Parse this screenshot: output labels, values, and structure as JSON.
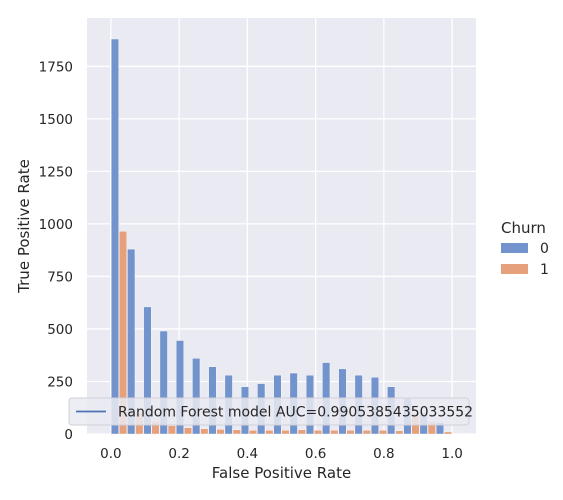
{
  "chart_data": {
    "type": "bar",
    "xlabel": "False Positive Rate",
    "ylabel": "True Positive Rate",
    "xlim": [
      -0.07,
      1.07
    ],
    "ylim": [
      0,
      1980
    ],
    "x_ticks": [
      0.0,
      0.2,
      0.4,
      0.6,
      0.8,
      1.0
    ],
    "x_tick_labels": [
      "0.0",
      "0.2",
      "0.4",
      "0.6",
      "0.8",
      "1.0"
    ],
    "y_ticks": [
      0,
      250,
      500,
      750,
      1000,
      1250,
      1500,
      1750
    ],
    "y_tick_labels": [
      "0",
      "250",
      "500",
      "750",
      "1000",
      "1250",
      "1500",
      "1750"
    ],
    "bin_width": 0.04762,
    "bin_starts": [
      0.0,
      0.0476,
      0.0952,
      0.1429,
      0.1905,
      0.2381,
      0.2857,
      0.3333,
      0.381,
      0.4286,
      0.4762,
      0.5238,
      0.5714,
      0.619,
      0.6667,
      0.7143,
      0.7619,
      0.8095,
      0.8571,
      0.9048,
      0.9524
    ],
    "series": [
      {
        "name": "0",
        "color": "#7293cb",
        "values": [
          1880,
          880,
          605,
          490,
          445,
          360,
          320,
          280,
          225,
          240,
          280,
          290,
          280,
          340,
          310,
          280,
          270,
          225,
          175,
          100,
          55
        ]
      },
      {
        "name": "1",
        "color": "#e6a07c",
        "values": [
          965,
          100,
          60,
          40,
          30,
          25,
          22,
          20,
          18,
          18,
          18,
          20,
          18,
          18,
          18,
          18,
          18,
          15,
          100,
          60,
          10
        ]
      }
    ],
    "legend": {
      "title": "Churn",
      "placement": "right",
      "entries": [
        "0",
        "1"
      ]
    },
    "line_legend": {
      "label": "Random Forest model AUC=0.9905385435033552",
      "color": "#4c72b0",
      "placement": "lower-left"
    },
    "grid": true,
    "background": "#eaeaf2"
  }
}
